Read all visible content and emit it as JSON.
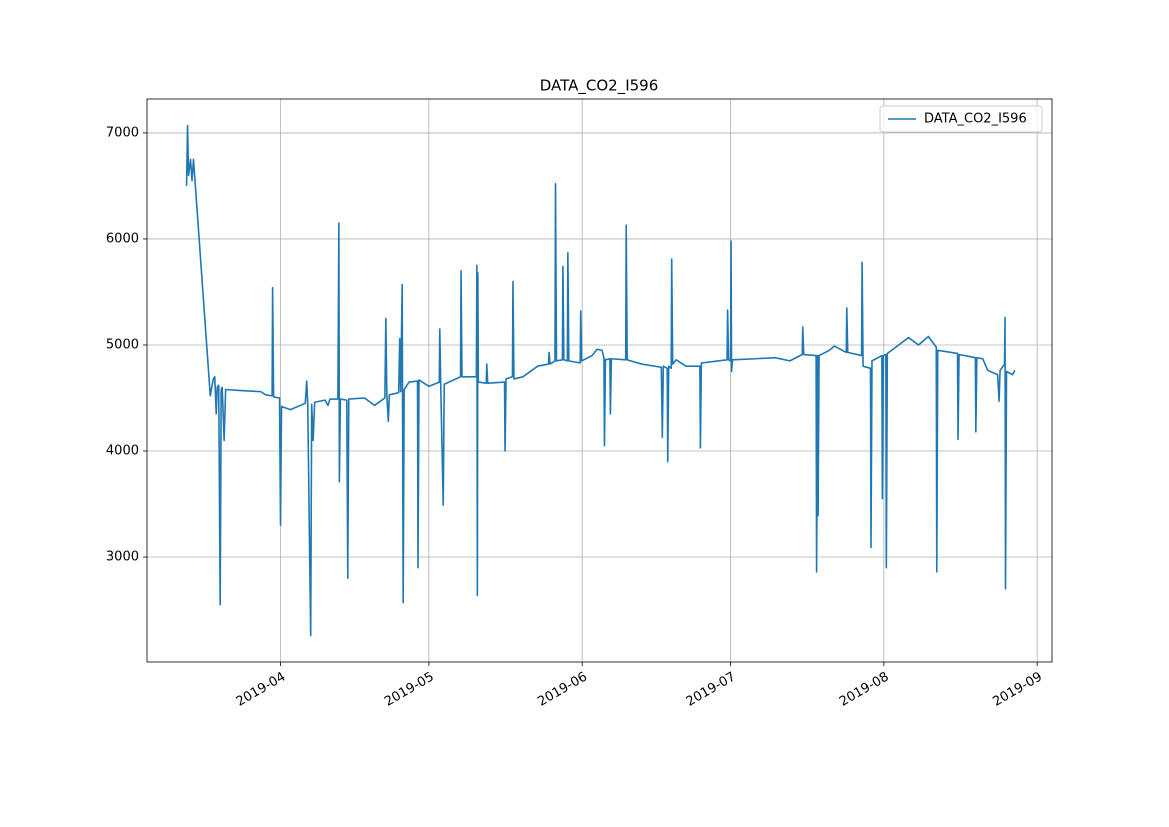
{
  "chart_data": {
    "type": "line",
    "title": "DATA_CO2_I596",
    "x": [
      17968,
      17968.2,
      17968.4,
      17968.8,
      17969.1,
      17969.4,
      17972.8,
      17973.4,
      17973.7,
      17974,
      17974.2,
      17974.5,
      17974.8,
      17975,
      17975.2,
      17975.6,
      17975.9,
      17979,
      17983,
      17984,
      17985.3,
      17985.4,
      17985.6,
      17986.8,
      17987,
      17987.2,
      17989,
      17992,
      17992.3,
      17992.5,
      17993.1,
      17993.3,
      17993.6,
      17993.9,
      17996,
      17996.6,
      17997,
      17998.6,
      17998.8,
      17998.9,
      17999.1,
      18000.4,
      18000.6,
      18000.8,
      18004,
      18006,
      18008.1,
      18008.3,
      18008.5,
      18008.8,
      18009,
      18010.9,
      18011.1,
      18011.3,
      18011.6,
      18011.8,
      18012,
      18013,
      18014.7,
      18014.8,
      18015,
      18017,
      18019.1,
      18019.2,
      18019.4,
      18019.9,
      18020.1,
      18023.4,
      18023.5,
      18023.7,
      18026.6,
      18026.7,
      18026.8,
      18026.9,
      18027,
      18028.6,
      18028.7,
      18028.9,
      18032.3,
      18032.4,
      18032.6,
      18033.9,
      18034,
      18034.2,
      18036,
      18039,
      18041.2,
      18041.3,
      18041.5,
      18042.5,
      18042.6,
      18042.8,
      18044,
      18044.1,
      18044.3,
      18045,
      18045.1,
      18045.3,
      18047.6,
      18047.7,
      18047.9,
      18050,
      18051,
      18052,
      18052.4,
      18052.5,
      18052.7,
      18053.6,
      18053.7,
      18053.9,
      18056.8,
      18056.9,
      18057.1,
      18060,
      18064,
      18064.2,
      18064.4,
      18065.2,
      18065.3,
      18065.5,
      18066,
      18066.1,
      18066.3,
      18067,
      18069,
      18071.8,
      18071.9,
      18072.1,
      18077.3,
      18077.4,
      18077.6,
      18078,
      18078.1,
      18078.2,
      18078.4,
      18083,
      18087,
      18090,
      18092.5,
      18092.6,
      18092.8,
      18095.3,
      18095.4,
      18095.6,
      18095.7,
      18095.9,
      18098,
      18099,
      18101.4,
      18101.5,
      18101.7,
      18104.5,
      18104.6,
      18104.8,
      18106.3,
      18106.4,
      18106.6,
      18108.6,
      18108.7,
      18108.9,
      18109.4,
      18109.5,
      18109.7,
      18112,
      18114,
      18116,
      18118,
      18119.6,
      18119.7,
      18119.9,
      18123.9,
      18124,
      18124.2,
      18127.5,
      18127.6,
      18127.8,
      18129,
      18130,
      18132,
      18132.3,
      18132.5,
      18133.4,
      18133.5,
      18133.6,
      18133.8,
      18135,
      18135.5
    ],
    "series": [
      {
        "name": "DATA_CO2_I596",
        "color": "#1f77b4",
        "values": [
          6500,
          7070,
          6600,
          6750,
          6550,
          6750,
          4520,
          4680,
          4700,
          4350,
          4600,
          4620,
          2550,
          4580,
          4600,
          4100,
          4580,
          4570,
          4560,
          4530,
          4520,
          5540,
          4510,
          4500,
          3300,
          4420,
          4390,
          4450,
          4660,
          4450,
          2260,
          4440,
          4100,
          4460,
          4480,
          4430,
          4490,
          4490,
          6150,
          3710,
          4490,
          4480,
          2800,
          4490,
          4500,
          4430,
          4500,
          5250,
          4520,
          4280,
          4530,
          4550,
          5060,
          4560,
          5570,
          2570,
          4580,
          4650,
          4660,
          2900,
          4670,
          4610,
          4650,
          5150,
          4620,
          3490,
          4630,
          4700,
          5700,
          4700,
          4700,
          5750,
          2640,
          5680,
          4650,
          4640,
          4820,
          4640,
          4650,
          4000,
          4680,
          4700,
          5600,
          4680,
          4700,
          4800,
          4820,
          4930,
          4820,
          4850,
          6520,
          4850,
          4860,
          5740,
          4860,
          4850,
          5870,
          4850,
          4830,
          5320,
          4850,
          4900,
          4960,
          4950,
          4880,
          4050,
          4860,
          4870,
          4350,
          4870,
          4860,
          6130,
          4860,
          4820,
          4790,
          4130,
          4800,
          4780,
          3900,
          4800,
          4780,
          5810,
          4820,
          4860,
          4800,
          4800,
          4030,
          4830,
          4860,
          5330,
          4860,
          4850,
          5980,
          4750,
          4860,
          4870,
          4880,
          4850,
          4910,
          5170,
          4910,
          4900,
          2860,
          4900,
          3390,
          4900,
          4950,
          4990,
          4930,
          5350,
          4930,
          4900,
          5780,
          4800,
          4780,
          3090,
          4850,
          4900,
          3550,
          4900,
          4910,
          2900,
          4920,
          5000,
          5070,
          5000,
          5080,
          4980,
          2860,
          4950,
          4920,
          4110,
          4910,
          4880,
          4180,
          4880,
          4870,
          4760,
          4720,
          4470,
          4760,
          4820,
          5260,
          2700,
          4750,
          4720,
          4760
        ]
      }
    ],
    "xlim": [
      17960,
      18143
    ],
    "xticks": [
      {
        "value": 17987,
        "label": "2019-04"
      },
      {
        "value": 18017,
        "label": "2019-05"
      },
      {
        "value": 18048,
        "label": "2019-06"
      },
      {
        "value": 18078,
        "label": "2019-07"
      },
      {
        "value": 18109,
        "label": "2019-08"
      },
      {
        "value": 18140,
        "label": "2019-09"
      }
    ],
    "ylim": [
      2010,
      7320
    ],
    "yticks": [
      3000,
      4000,
      5000,
      6000,
      7000
    ],
    "grid": true,
    "legend": "upper right"
  }
}
